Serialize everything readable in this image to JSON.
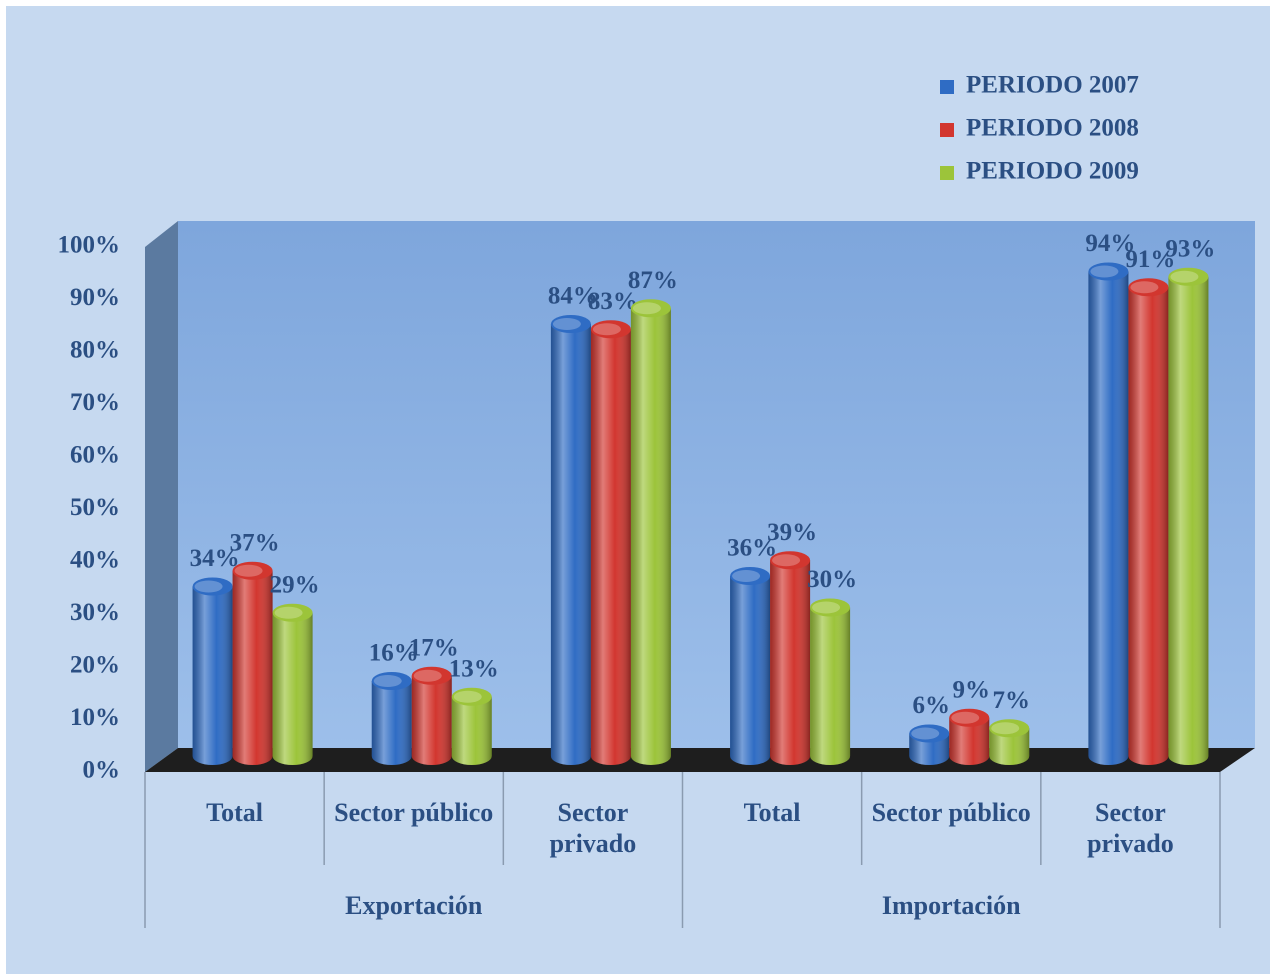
{
  "chart_data": {
    "type": "bar",
    "categories": [
      "Total",
      "Sector público",
      "Sector privado",
      "Total",
      "Sector público",
      "Sector privado"
    ],
    "groups": [
      "Exportación",
      "Importación"
    ],
    "series": [
      {
        "name": "PERIODO 2007",
        "color": "#2f6cc4",
        "values": [
          34,
          16,
          84,
          36,
          6,
          94
        ],
        "value_labels": [
          "34%",
          "16%",
          "84%",
          "36%",
          "6%",
          "94%"
        ]
      },
      {
        "name": "PERIODO 2008",
        "color": "#d2362f",
        "values": [
          37,
          17,
          83,
          39,
          9,
          91
        ],
        "value_labels": [
          "37%",
          "17%",
          "83%",
          "39%",
          "9%",
          "91%"
        ]
      },
      {
        "name": "PERIODO 2009",
        "color": "#9cc43a",
        "values": [
          29,
          13,
          87,
          30,
          7,
          93
        ],
        "value_labels": [
          "29%",
          "13%",
          "87%",
          "30%",
          "7%",
          "93%"
        ]
      }
    ],
    "ylim": [
      0,
      100
    ],
    "yticks": [
      {
        "value": 0,
        "label": "0%"
      },
      {
        "value": 10,
        "label": "10%"
      },
      {
        "value": 20,
        "label": "20%"
      },
      {
        "value": 30,
        "label": "30%"
      },
      {
        "value": 40,
        "label": "40%"
      },
      {
        "value": 50,
        "label": "50%"
      },
      {
        "value": 60,
        "label": "60%"
      },
      {
        "value": 70,
        "label": "70%"
      },
      {
        "value": 80,
        "label": "80%"
      },
      {
        "value": 90,
        "label": "90%"
      },
      {
        "value": 100,
        "label": "100%"
      }
    ],
    "grid": false,
    "legend": "top-right"
  }
}
